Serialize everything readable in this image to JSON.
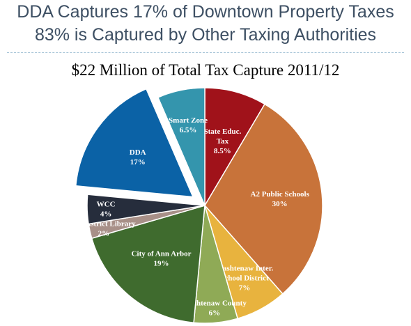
{
  "title": {
    "line1": "DDA Captures 17% of Downtown Property Taxes",
    "line2": "83% is Captured by Other Taxing Authorities"
  },
  "chart_data": {
    "type": "pie",
    "title": "$22 Million of  Total Tax Capture 2011/12",
    "slices": [
      {
        "label_lines": [
          "State Educ.",
          "Tax"
        ],
        "pct_label": "8.5%",
        "value": 8.5,
        "color": "#a0121a",
        "exploded": false
      },
      {
        "label_lines": [
          "A2 Public Schools"
        ],
        "pct_label": "30%",
        "value": 30,
        "color": "#c8733a",
        "exploded": false
      },
      {
        "label_lines": [
          "Washtenaw Inter.",
          "School District"
        ],
        "pct_label": "7%",
        "value": 7,
        "color": "#e8b33e",
        "exploded": false
      },
      {
        "label_lines": [
          "Washtenaw County"
        ],
        "pct_label": "6%",
        "value": 6,
        "color": "#8faa56",
        "exploded": false
      },
      {
        "label_lines": [
          "City of Ann Arbor"
        ],
        "pct_label": "19%",
        "value": 19,
        "color": "#3f6b2e",
        "exploded": false
      },
      {
        "label_lines": [
          "A2 District Library"
        ],
        "pct_label": "2%",
        "value": 2,
        "color": "#a89088",
        "exploded": false
      },
      {
        "label_lines": [
          "WCC"
        ],
        "pct_label": "4%",
        "value": 4,
        "color": "#262d3c",
        "exploded": false
      },
      {
        "label_lines": [
          "DDA"
        ],
        "pct_label": "17%",
        "value": 17,
        "color": "#0b62a6",
        "exploded": true
      },
      {
        "label_lines": [
          "Smart Zone"
        ],
        "pct_label": "6.5%",
        "value": 6.5,
        "color": "#3495ad",
        "exploded": false
      }
    ]
  }
}
